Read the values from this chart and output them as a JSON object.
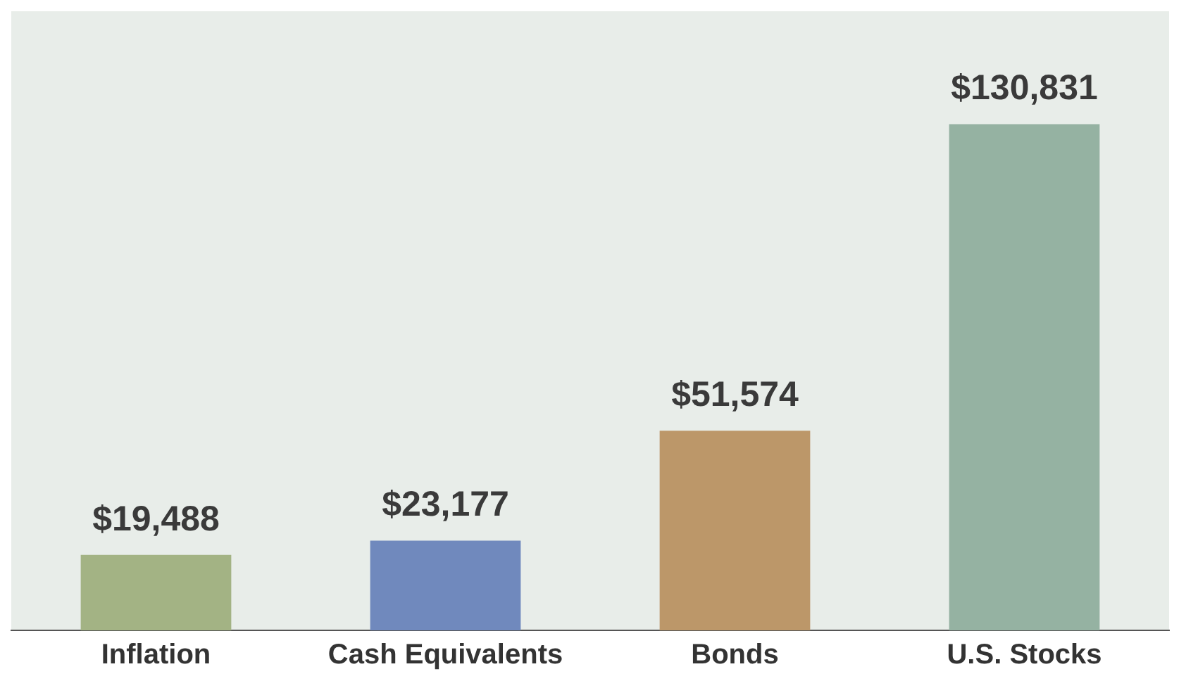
{
  "chart_data": {
    "type": "bar",
    "categories": [
      "Inflation",
      "Cash Equivalents",
      "Bonds",
      "U.S. Stocks"
    ],
    "values": [
      19488,
      23177,
      51574,
      130831
    ],
    "colors": [
      "#a3b384",
      "#7089bd",
      "#bc9769",
      "#95b2a2"
    ],
    "value_labels": [
      "$19,488",
      "$23,177",
      "$51,574",
      "$130,831"
    ],
    "grid": false,
    "legend": false
  }
}
